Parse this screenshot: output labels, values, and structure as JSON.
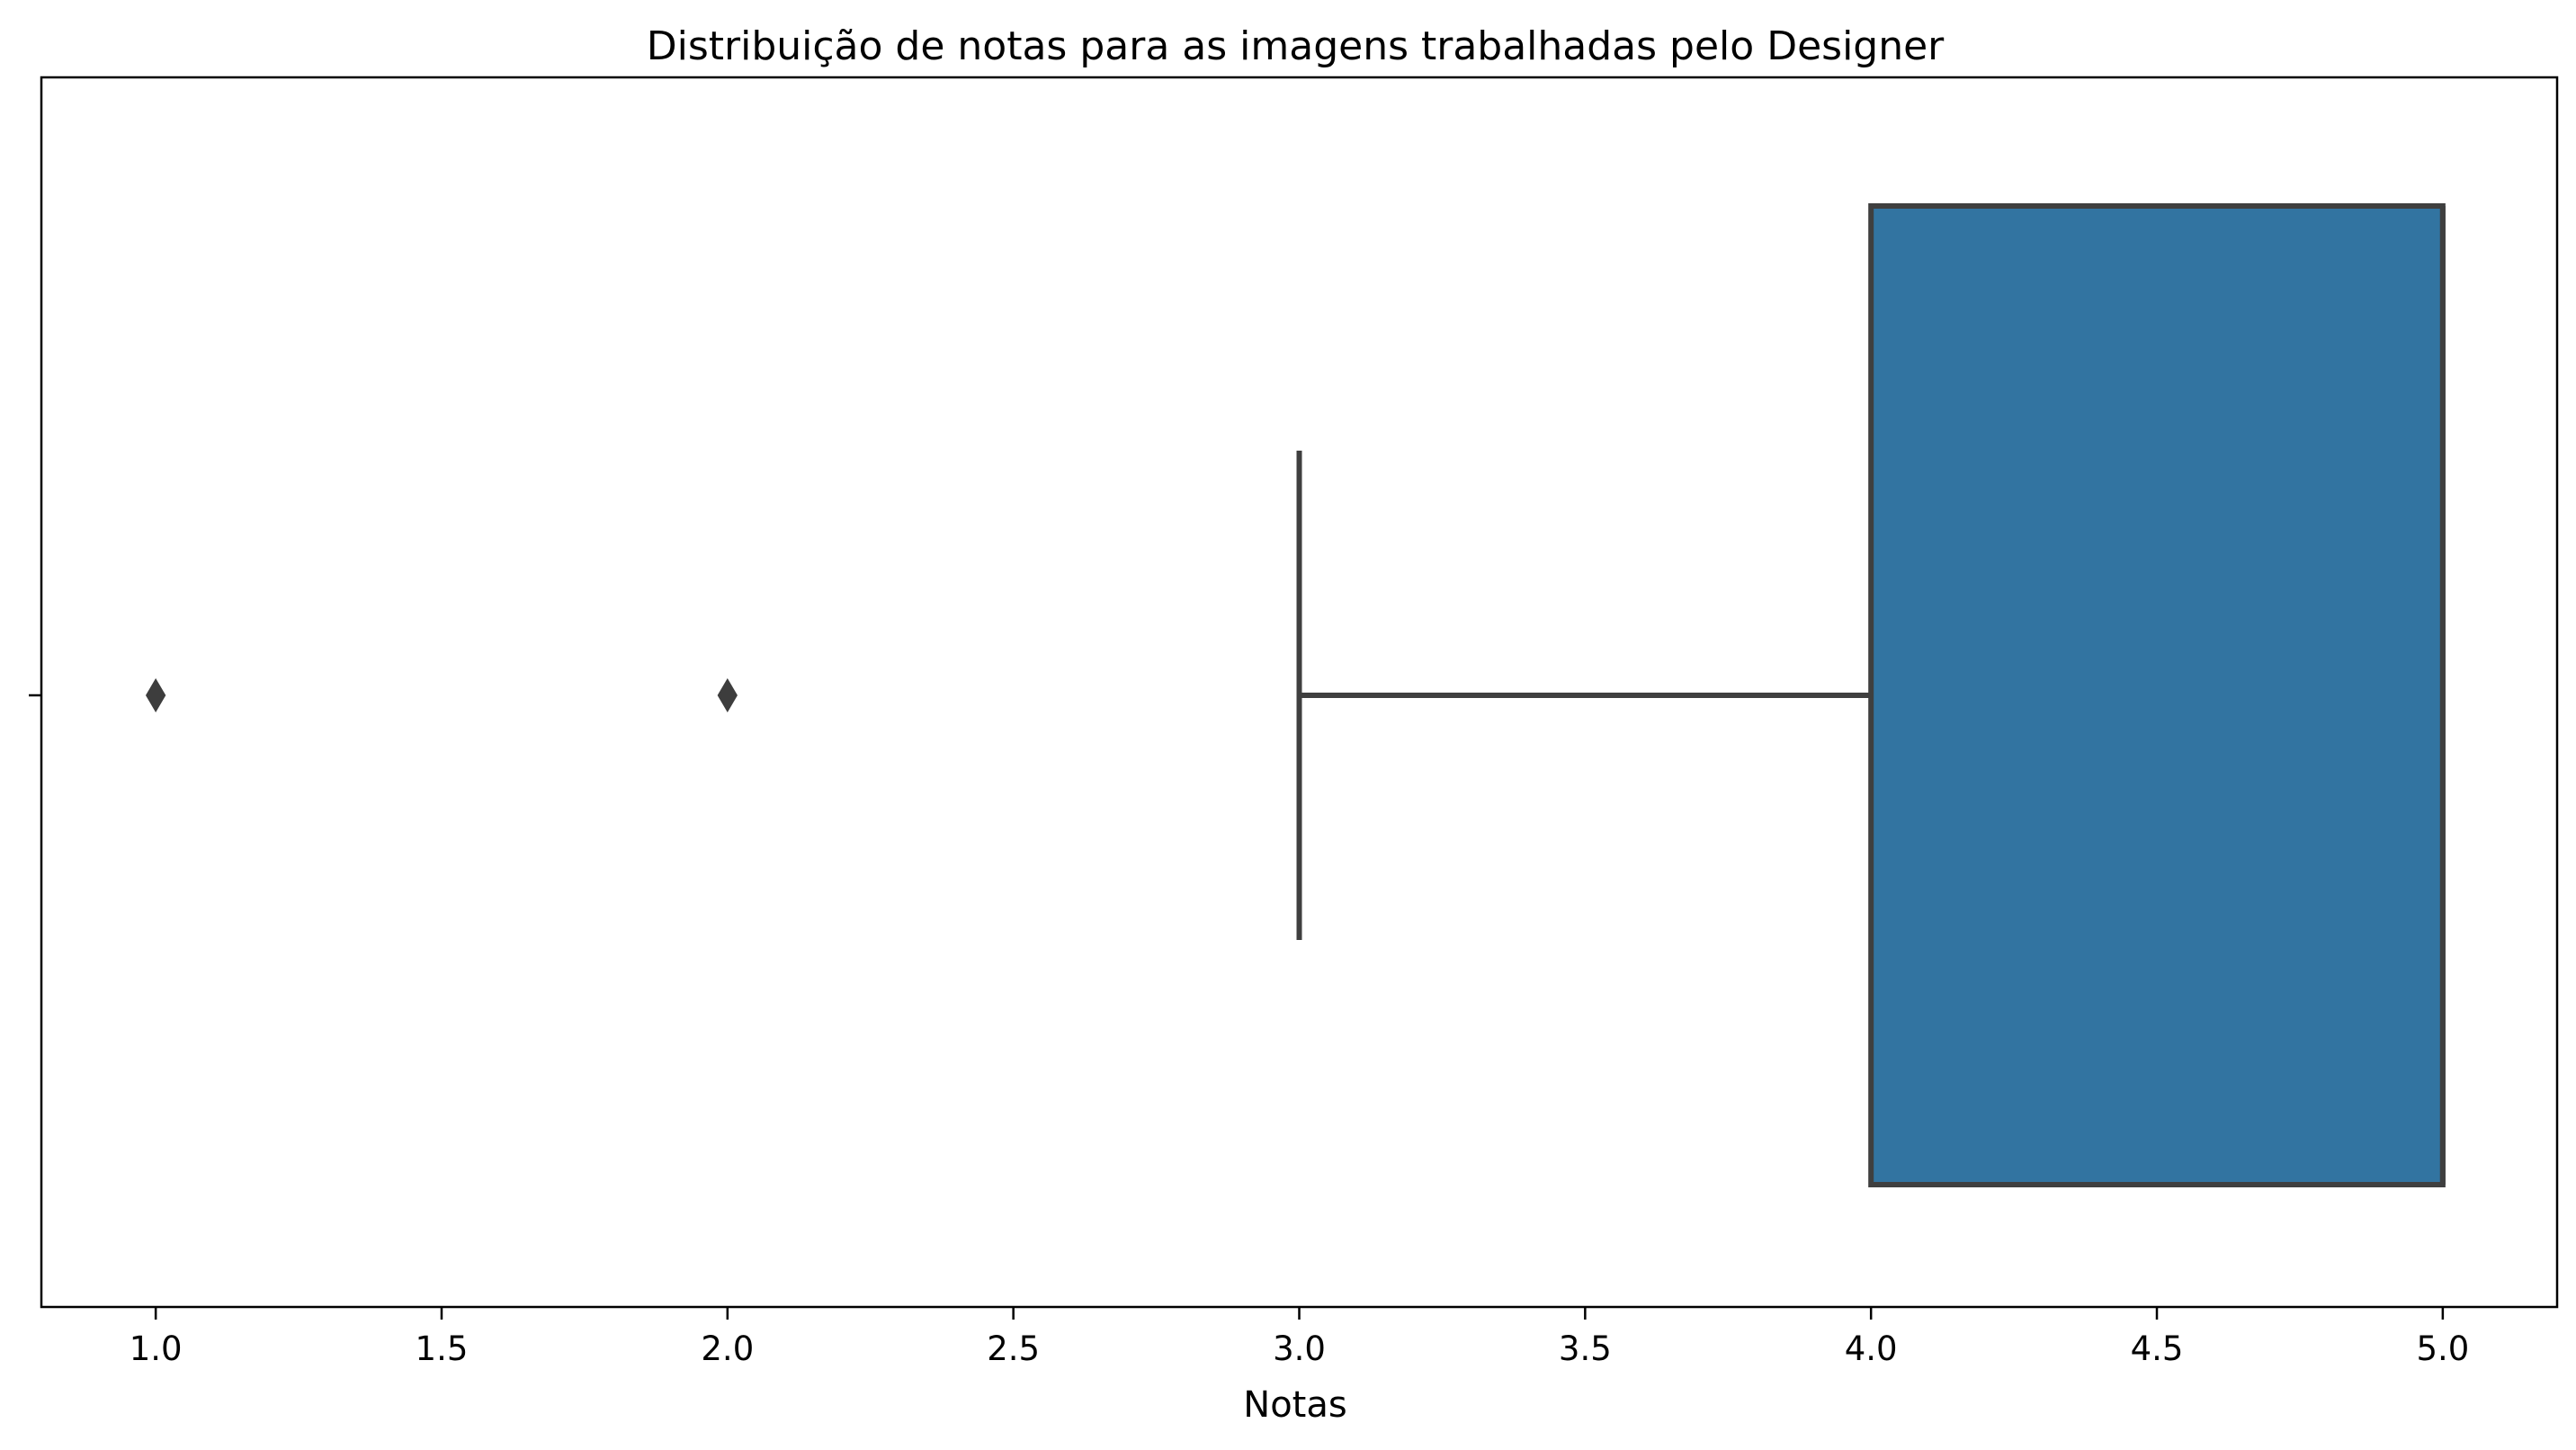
{
  "chart_data": {
    "type": "box",
    "orientation": "horizontal",
    "title": "Distribuição de notas para as imagens trabalhadas pelo Designer",
    "xlabel": "Notas",
    "ylabel": "",
    "xlim": [
      0.8,
      5.2
    ],
    "xticks": [
      1.0,
      1.5,
      2.0,
      2.5,
      3.0,
      3.5,
      4.0,
      4.5,
      5.0
    ],
    "xtick_labels": [
      "1.0",
      "1.5",
      "2.0",
      "2.5",
      "3.0",
      "3.5",
      "4.0",
      "4.5",
      "5.0"
    ],
    "grid": false,
    "box": {
      "whisker_low": 3.0,
      "q1": 4.0,
      "median": 5.0,
      "q3": 5.0,
      "whisker_high": 5.0,
      "outliers": [
        1.0,
        2.0
      ]
    },
    "colors": {
      "box_fill": "#3274a1",
      "line": "#3f3f3f",
      "outlier": "#3d3d3d",
      "axes": "#000000"
    }
  }
}
